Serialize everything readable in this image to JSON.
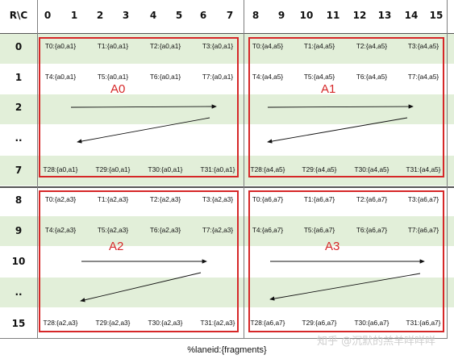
{
  "corner_label": "R\\C",
  "columns": [
    "0",
    "1",
    "2",
    "3",
    "4",
    "5",
    "6",
    "7",
    "8",
    "9",
    "10",
    "11",
    "12",
    "13",
    "14",
    "15"
  ],
  "rows": [
    "0",
    "1",
    "2",
    "..",
    "7",
    "8",
    "9",
    "10",
    "..",
    "15"
  ],
  "blocks": [
    {
      "label": "A0",
      "r0": [
        "T0:{a0,a1}",
        "T1:{a0,a1}",
        "T2:{a0,a1}",
        "T3:{a0,a1}"
      ],
      "r1": [
        "T4:{a0,a1}",
        "T5:{a0,a1}",
        "T6:{a0,a1}",
        "T7:{a0,a1}"
      ],
      "r7": [
        "T28:{a0,a1}",
        "T29:{a0,a1}",
        "T30:{a0,a1}",
        "T31:{a0,a1}"
      ]
    },
    {
      "label": "A1",
      "r0": [
        "T0:{a4,a5}",
        "T1:{a4,a5}",
        "T2:{a4,a5}",
        "T3:{a4,a5}"
      ],
      "r1": [
        "T4:{a4,a5}",
        "T5:{a4,a5}",
        "T6:{a4,a5}",
        "T7:{a4,a5}"
      ],
      "r7": [
        "T28:{a4,a5}",
        "T29:{a4,a5}",
        "T30:{a4,a5}",
        "T31:{a4,a5}"
      ]
    },
    {
      "label": "A2",
      "r0": [
        "T0:{a2,a3}",
        "T1:{a2,a3}",
        "T2:{a2,a3}",
        "T3:{a2,a3}"
      ],
      "r1": [
        "T4:{a2,a3}",
        "T5:{a2,a3}",
        "T6:{a2,a3}",
        "T7:{a2,a3}"
      ],
      "r7": [
        "T28:{a2,a3}",
        "T29:{a2,a3}",
        "T30:{a2,a3}",
        "T31:{a2,a3}"
      ]
    },
    {
      "label": "A3",
      "r0": [
        "T0:{a6,a7}",
        "T1:{a6,a7}",
        "T2:{a6,a7}",
        "T3:{a6,a7}"
      ],
      "r1": [
        "T4:{a6,a7}",
        "T5:{a6,a7}",
        "T6:{a6,a7}",
        "T7:{a6,a7}"
      ],
      "r7": [
        "T28:{a6,a7}",
        "T29:{a6,a7}",
        "T30:{a6,a7}",
        "T31:{a6,a7}"
      ]
    }
  ],
  "caption": "%laneid:{fragments}",
  "watermark": "知乎 @沉默的羔羊咩咩咩",
  "colors": {
    "band_green": "#e2efd9",
    "block_border": "#d62728",
    "grid_line": "#7f7f7f"
  }
}
